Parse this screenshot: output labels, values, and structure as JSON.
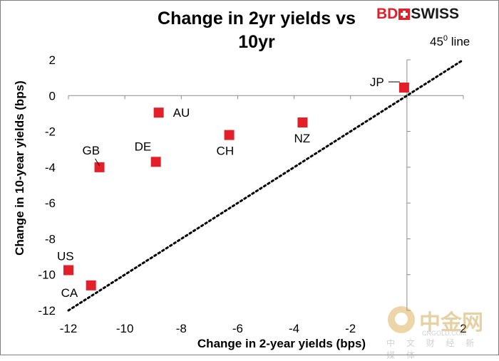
{
  "brand": {
    "part1": "BD",
    "part2": "SWISS"
  },
  "watermark": {
    "cn": "中金网",
    "en": "CNGOLD.COM",
    "sub": "中 文 财 经 新 媒 体"
  },
  "chart_data": {
    "type": "scatter",
    "title": "Change in 2yr yields vs\n10yr",
    "xlabel": "Change in 2-year yields (bps)",
    "ylabel": "Change in 10-year yields (bps)",
    "xlim": [
      -12,
      2
    ],
    "ylim": [
      -12,
      2
    ],
    "x_ticks": [
      -12,
      -10,
      -8,
      -6,
      -4,
      -2,
      2
    ],
    "y_ticks": [
      2,
      0,
      -2,
      -4,
      -6,
      -8,
      -10,
      -12
    ],
    "grid": false,
    "marker_color": "#e3202a",
    "reference_line": {
      "label": "45",
      "label_sup": "0",
      "label_tail": " line",
      "style": "dotted",
      "from": [
        -12,
        -12
      ],
      "to": [
        2,
        2
      ]
    },
    "points": [
      {
        "label": "JP",
        "x": -0.1,
        "y": 0.45
      },
      {
        "label": "AU",
        "x": -8.8,
        "y": -0.95
      },
      {
        "label": "NZ",
        "x": -3.7,
        "y": -1.5
      },
      {
        "label": "CH",
        "x": -6.3,
        "y": -2.2
      },
      {
        "label": "DE",
        "x": -8.9,
        "y": -3.7
      },
      {
        "label": "GB",
        "x": -10.9,
        "y": -4.0
      },
      {
        "label": "US",
        "x": -12.0,
        "y": -9.75
      },
      {
        "label": "CA",
        "x": -11.2,
        "y": -10.6
      }
    ]
  }
}
